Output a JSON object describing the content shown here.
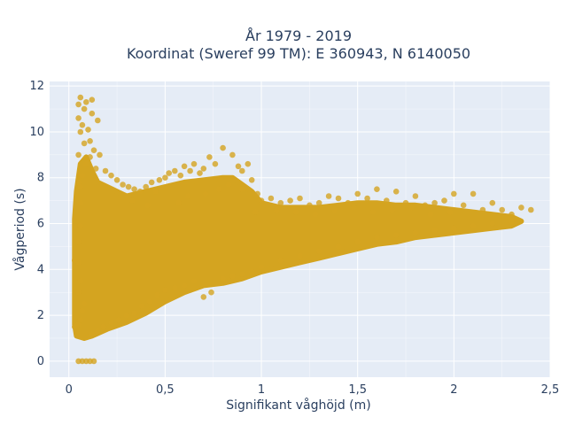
{
  "chart_data": {
    "type": "scatter",
    "title_line1": "År 1979 - 2019",
    "title_line2": "Koordinat (Sweref 99 TM): E 360943, N 6140050",
    "xlabel": "Signifikant våghöjd (m)",
    "ylabel": "Vågperiod (s)",
    "xlim": [
      -0.1,
      2.5
    ],
    "ylim": [
      -0.7,
      12.2
    ],
    "x_ticks": [
      0,
      0.5,
      1,
      1.5,
      2,
      2.5
    ],
    "x_tick_labels": [
      "0",
      "0,5",
      "1",
      "1,5",
      "2",
      "2,5"
    ],
    "y_ticks": [
      0,
      2,
      4,
      6,
      8,
      10,
      12
    ],
    "y_tick_labels": [
      "0",
      "2",
      "4",
      "6",
      "8",
      "10",
      "12"
    ],
    "grid": true,
    "colors": {
      "marker": "#d4a420",
      "plot_bg": "#e5ecf6",
      "grid": "#ffffff"
    },
    "series": [
      {
        "points": [
          [
            0.03,
            1.5
          ],
          [
            0.05,
            1.6
          ],
          [
            0.06,
            1.8
          ],
          [
            0.04,
            1.55
          ],
          [
            0.07,
            2.2
          ],
          [
            0.08,
            2.5
          ],
          [
            0.05,
            3.0
          ],
          [
            0.06,
            3.5
          ],
          [
            0.05,
            4.3
          ],
          [
            0.05,
            5.2
          ],
          [
            0.06,
            5.9
          ],
          [
            0.06,
            6.9
          ],
          [
            0.06,
            7.6
          ],
          [
            0.07,
            8.1
          ],
          [
            0.05,
            9.0
          ],
          [
            0.06,
            10.0
          ],
          [
            0.05,
            10.6
          ],
          [
            0.06,
            11.5
          ],
          [
            0.09,
            11.3
          ],
          [
            0.12,
            11.4
          ],
          [
            0.05,
            11.2
          ],
          [
            0.08,
            11.0
          ],
          [
            0.12,
            10.8
          ],
          [
            0.07,
            10.3
          ],
          [
            0.1,
            10.1
          ],
          [
            0.15,
            10.5
          ],
          [
            0.11,
            9.6
          ],
          [
            0.08,
            9.5
          ],
          [
            0.13,
            9.2
          ],
          [
            0.11,
            8.9
          ],
          [
            0.16,
            9.0
          ],
          [
            0.09,
            8.6
          ],
          [
            0.14,
            8.4
          ],
          [
            0.19,
            8.3
          ],
          [
            0.22,
            8.1
          ],
          [
            0.25,
            7.9
          ],
          [
            0.28,
            7.7
          ],
          [
            0.31,
            7.6
          ],
          [
            0.34,
            7.5
          ],
          [
            0.37,
            7.4
          ],
          [
            0.4,
            7.6
          ],
          [
            0.43,
            7.8
          ],
          [
            0.45,
            7.4
          ],
          [
            0.47,
            7.9
          ],
          [
            0.5,
            8.0
          ],
          [
            0.52,
            8.2
          ],
          [
            0.55,
            8.3
          ],
          [
            0.58,
            8.1
          ],
          [
            0.6,
            8.5
          ],
          [
            0.63,
            8.3
          ],
          [
            0.65,
            8.6
          ],
          [
            0.68,
            8.2
          ],
          [
            0.7,
            8.4
          ],
          [
            0.73,
            8.9
          ],
          [
            0.76,
            8.6
          ],
          [
            0.8,
            9.3
          ],
          [
            0.85,
            9.0
          ],
          [
            0.88,
            8.5
          ],
          [
            0.9,
            8.3
          ],
          [
            0.93,
            8.6
          ],
          [
            0.95,
            7.9
          ],
          [
            0.98,
            7.3
          ],
          [
            1.0,
            7.0
          ],
          [
            1.05,
            7.1
          ],
          [
            1.1,
            6.9
          ],
          [
            1.15,
            7.0
          ],
          [
            1.2,
            7.1
          ],
          [
            1.25,
            6.8
          ],
          [
            1.3,
            6.9
          ],
          [
            1.35,
            7.2
          ],
          [
            1.4,
            7.1
          ],
          [
            1.45,
            6.9
          ],
          [
            1.5,
            7.3
          ],
          [
            1.55,
            7.1
          ],
          [
            1.6,
            7.5
          ],
          [
            1.65,
            7.0
          ],
          [
            1.7,
            7.4
          ],
          [
            1.75,
            6.9
          ],
          [
            1.8,
            7.2
          ],
          [
            1.85,
            6.8
          ],
          [
            1.9,
            6.9
          ],
          [
            1.95,
            7.0
          ],
          [
            2.0,
            7.3
          ],
          [
            2.05,
            6.8
          ],
          [
            2.1,
            7.3
          ],
          [
            2.15,
            6.6
          ],
          [
            2.2,
            6.9
          ],
          [
            2.25,
            6.6
          ],
          [
            2.3,
            6.4
          ],
          [
            2.35,
            6.7
          ],
          [
            2.4,
            6.6
          ],
          [
            0.05,
            0
          ],
          [
            0.07,
            0
          ],
          [
            0.09,
            0
          ],
          [
            0.11,
            0
          ],
          [
            0.13,
            0
          ],
          [
            0.12,
            1.2
          ],
          [
            0.15,
            1.3
          ],
          [
            0.18,
            1.5
          ],
          [
            0.22,
            1.7
          ],
          [
            0.26,
            1.8
          ],
          [
            0.3,
            2.0
          ],
          [
            0.34,
            2.1
          ],
          [
            0.38,
            2.4
          ],
          [
            0.42,
            2.6
          ],
          [
            0.46,
            2.9
          ],
          [
            0.5,
            3.1
          ],
          [
            0.55,
            3.2
          ],
          [
            0.6,
            3.3
          ],
          [
            0.65,
            3.5
          ],
          [
            0.7,
            2.8
          ],
          [
            0.74,
            3.0
          ],
          [
            0.8,
            3.6
          ],
          [
            0.85,
            3.7
          ],
          [
            0.9,
            3.8
          ],
          [
            0.95,
            3.9
          ],
          [
            1.0,
            4.1
          ],
          [
            1.1,
            4.4
          ],
          [
            1.2,
            4.6
          ],
          [
            1.3,
            4.8
          ],
          [
            1.4,
            5.0
          ],
          [
            1.5,
            5.2
          ],
          [
            1.6,
            5.4
          ],
          [
            1.7,
            5.5
          ],
          [
            1.8,
            5.6
          ],
          [
            1.9,
            5.7
          ],
          [
            2.0,
            5.8
          ],
          [
            2.1,
            5.9
          ],
          [
            2.2,
            6.0
          ],
          [
            2.3,
            6.1
          ],
          [
            0.03,
            4.4
          ],
          [
            0.05,
            7.8
          ],
          [
            0.33,
            7.0
          ],
          [
            0.41,
            6.8
          ],
          [
            0.57,
            6.9
          ],
          [
            0.62,
            7.2
          ],
          [
            0.71,
            7.3
          ],
          [
            0.78,
            7.5
          ],
          [
            0.83,
            7.7
          ],
          [
            0.9,
            7.5
          ],
          [
            0.97,
            6.5
          ],
          [
            1.08,
            6.6
          ],
          [
            1.18,
            6.5
          ],
          [
            1.28,
            6.4
          ],
          [
            1.38,
            6.6
          ],
          [
            1.48,
            6.7
          ],
          [
            1.58,
            6.5
          ],
          [
            1.68,
            6.6
          ],
          [
            1.78,
            6.7
          ],
          [
            1.88,
            6.4
          ],
          [
            1.98,
            6.5
          ]
        ]
      }
    ],
    "cloud": [
      [
        0.04,
        1.1
      ],
      [
        0.08,
        1.0
      ],
      [
        0.12,
        1.1
      ],
      [
        0.2,
        1.4
      ],
      [
        0.3,
        1.7
      ],
      [
        0.4,
        2.1
      ],
      [
        0.5,
        2.6
      ],
      [
        0.6,
        3.0
      ],
      [
        0.7,
        3.3
      ],
      [
        0.8,
        3.4
      ],
      [
        0.9,
        3.6
      ],
      [
        1.0,
        3.9
      ],
      [
        1.1,
        4.1
      ],
      [
        1.2,
        4.3
      ],
      [
        1.3,
        4.5
      ],
      [
        1.4,
        4.7
      ],
      [
        1.5,
        4.9
      ],
      [
        1.6,
        5.1
      ],
      [
        1.7,
        5.2
      ],
      [
        1.8,
        5.4
      ],
      [
        1.9,
        5.5
      ],
      [
        2.0,
        5.6
      ],
      [
        2.1,
        5.7
      ],
      [
        2.2,
        5.8
      ],
      [
        2.3,
        5.9
      ],
      [
        2.35,
        6.1
      ],
      [
        2.3,
        6.3
      ],
      [
        2.2,
        6.4
      ],
      [
        2.1,
        6.5
      ],
      [
        2.0,
        6.6
      ],
      [
        1.9,
        6.7
      ],
      [
        1.8,
        6.8
      ],
      [
        1.7,
        6.8
      ],
      [
        1.6,
        6.9
      ],
      [
        1.5,
        6.9
      ],
      [
        1.4,
        6.8
      ],
      [
        1.3,
        6.7
      ],
      [
        1.2,
        6.7
      ],
      [
        1.1,
        6.7
      ],
      [
        1.0,
        6.9
      ],
      [
        0.95,
        7.4
      ],
      [
        0.9,
        7.7
      ],
      [
        0.85,
        8.0
      ],
      [
        0.8,
        8.0
      ],
      [
        0.7,
        7.9
      ],
      [
        0.6,
        7.8
      ],
      [
        0.5,
        7.6
      ],
      [
        0.4,
        7.4
      ],
      [
        0.3,
        7.2
      ],
      [
        0.25,
        7.4
      ],
      [
        0.2,
        7.6
      ],
      [
        0.15,
        7.8
      ],
      [
        0.12,
        8.3
      ],
      [
        0.09,
        8.9
      ],
      [
        0.06,
        8.6
      ],
      [
        0.04,
        7.4
      ],
      [
        0.03,
        6.2
      ],
      [
        0.03,
        4.8
      ],
      [
        0.03,
        3.0
      ],
      [
        0.03,
        1.6
      ]
    ]
  }
}
